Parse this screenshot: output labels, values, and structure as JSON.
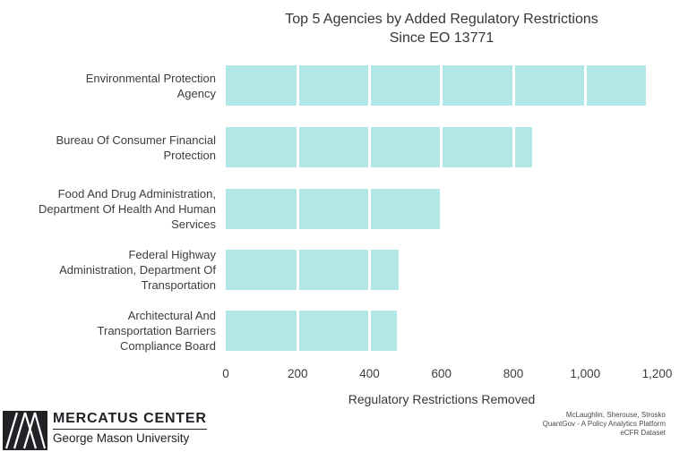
{
  "chart_data": {
    "type": "bar",
    "orientation": "horizontal",
    "title": "Top 5 Agencies by Added Regulatory Restrictions\nSince EO 13771",
    "categories": [
      "Environmental Protection\nAgency",
      "Bureau Of Consumer Financial\nProtection",
      "Food And Drug Administration,\nDepartment Of Health And Human\nServices",
      "Federal Highway\nAdministration, Department Of\nTransportation",
      "Architectural And\nTransportation Barriers\nCompliance Board"
    ],
    "values": [
      1170,
      853,
      599,
      480,
      477
    ],
    "xlabel": "Regulatory Restrictions Removed",
    "xlim": [
      0,
      1200
    ],
    "xticks": [
      0,
      200,
      400,
      600,
      800,
      1000,
      1200
    ],
    "xtick_labels": [
      "0",
      "200",
      "400",
      "600",
      "800",
      "1,000",
      "1,200"
    ],
    "bar_color": "#b2e7e8",
    "gridline_color": "#ffffff",
    "grid": "white vertical lines over bars only",
    "legend_position": "none"
  },
  "footer": {
    "logo": {
      "mark_icon": "mercatus-logo-mark",
      "org": "MERCATUS CENTER",
      "sub": "George Mason University"
    },
    "credits": [
      "McLaughlin, Sherouse, Strosko",
      "QuantGov - A Policy Analytics Platform",
      "eCFR Dataset"
    ]
  }
}
